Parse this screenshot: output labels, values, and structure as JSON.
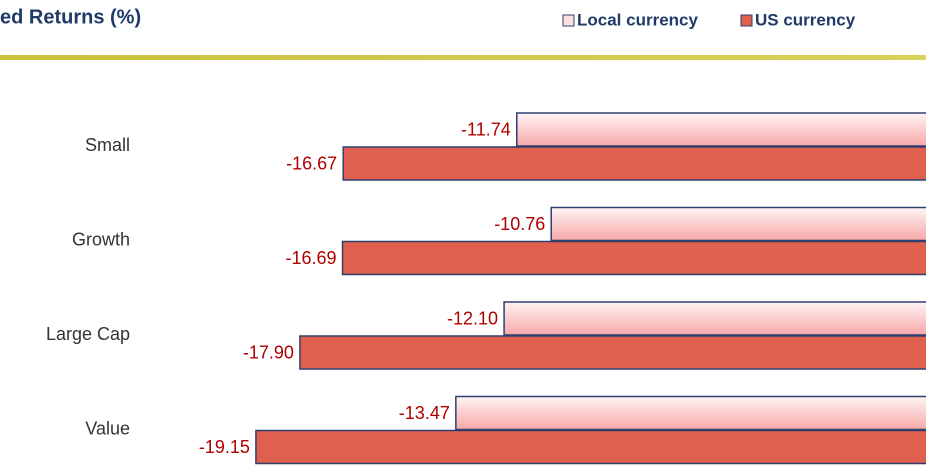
{
  "chart_data": {
    "type": "hbar",
    "title": "ed Returns (%)",
    "categories": [
      "Small",
      "Growth",
      "Large Cap",
      "Value"
    ],
    "series": [
      {
        "name": "Local currency",
        "color": "#f7a8a8",
        "values": [
          -11.74,
          -10.76,
          -12.1,
          -13.47
        ],
        "value_labels": [
          "-11.74",
          "-10.76",
          "-12.10",
          "-13.47"
        ]
      },
      {
        "name": "US currency",
        "color": "#e0604f",
        "values": [
          -16.67,
          -16.69,
          -17.9,
          -19.15
        ],
        "value_labels": [
          "-16.67",
          "-16.69",
          "-17.90",
          "-19.15"
        ]
      }
    ],
    "legend": "top-right"
  }
}
